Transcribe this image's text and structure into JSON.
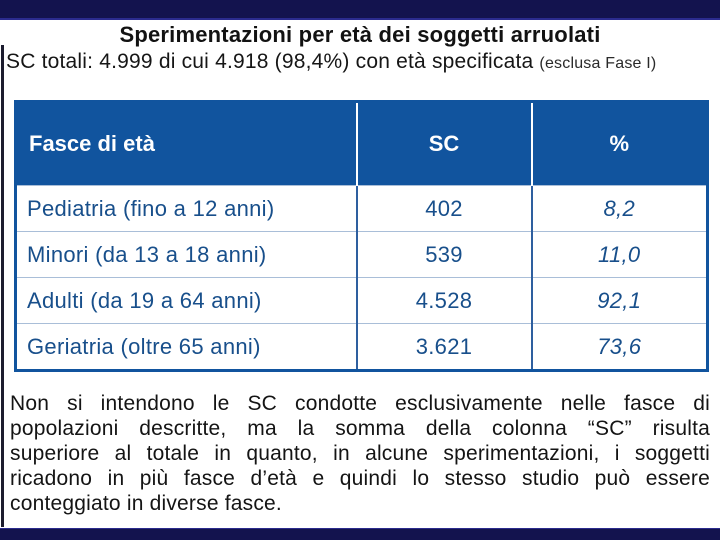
{
  "slide": {
    "title": "Sperimentazioni per età dei soggetti arruolati",
    "subtitle_main": "SC totali: 4.999 di cui 4.918 (98,4%) con età specificata",
    "subtitle_paren": "(esclusa Fase I)"
  },
  "table": {
    "headers": {
      "label": "Fasce di età",
      "sc": "SC",
      "pct": "%"
    },
    "rows": [
      {
        "label": "Pediatria (fino a 12 anni)",
        "sc": "402",
        "pct": "8,2"
      },
      {
        "label": "Minori (da 13 a 18 anni)",
        "sc": "539",
        "pct": "11,0"
      },
      {
        "label": "Adulti (da 19 a 64 anni)",
        "sc": "4.528",
        "pct": "92,1"
      },
      {
        "label": "Geriatria (oltre 65 anni)",
        "sc": "3.621",
        "pct": "73,6"
      }
    ]
  },
  "note": {
    "lines": [
      "Non si intendono le SC condotte esclusivamente nelle fasce di",
      "popolazioni descritte, ma la somma della colonna “SC” risulta",
      "superiore al totale in quanto, in alcune sperimentazioni, i soggetti",
      "ricadono in più fasce d’età e quindi lo stesso studio può essere",
      "conteggiato in diverse fasce."
    ]
  },
  "colors": {
    "bar_navy": "#13134e",
    "bar_accent": "#2b2b8e",
    "table_header_blue": "#11549e",
    "table_text_blue": "#184f8b",
    "row_divider": "#a9bed8",
    "text_black": "#141414"
  }
}
